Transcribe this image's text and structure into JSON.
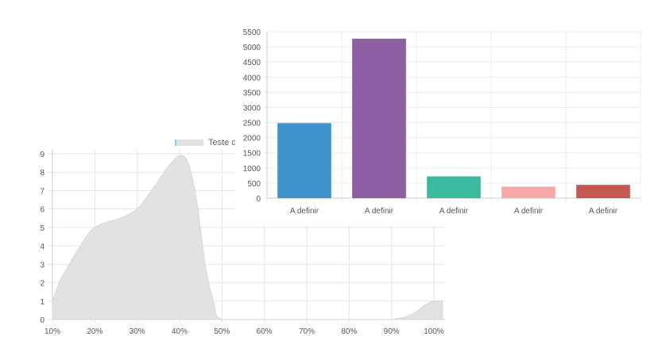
{
  "charts": {
    "area": {
      "legend_label": "Teste d"
    }
  },
  "chart_data": [
    {
      "type": "area",
      "title": "",
      "xlabel": "",
      "ylabel": "",
      "x_ticks": [
        "10%",
        "20%",
        "30%",
        "40%",
        "50%",
        "60%",
        "70%",
        "80%",
        "90%",
        "100%"
      ],
      "y_ticks": [
        0,
        1,
        2,
        3,
        4,
        5,
        6,
        7,
        8,
        9
      ],
      "ylim": [
        0,
        9
      ],
      "xlim": [
        10,
        100
      ],
      "grid": true,
      "legend": "top-center",
      "series": [
        {
          "name": "Teste d",
          "color": "#e2e2e2",
          "points": [
            [
              10,
              1
            ],
            [
              12,
              2.2
            ],
            [
              15,
              3.4
            ],
            [
              18,
              4.5
            ],
            [
              20,
              5
            ],
            [
              23,
              5.3
            ],
            [
              26,
              5.5
            ],
            [
              30,
              6
            ],
            [
              34,
              7.2
            ],
            [
              37,
              8.2
            ],
            [
              40,
              8.9
            ],
            [
              42,
              8.5
            ],
            [
              44,
              6.5
            ],
            [
              46,
              3
            ],
            [
              48,
              1
            ],
            [
              50,
              0
            ],
            [
              60,
              0
            ],
            [
              70,
              0
            ],
            [
              80,
              0
            ],
            [
              90,
              0
            ],
            [
              95,
              0.3
            ],
            [
              98,
              0.8
            ],
            [
              100,
              1
            ],
            [
              102,
              1
            ]
          ]
        }
      ]
    },
    {
      "type": "bar",
      "title": "",
      "xlabel": "",
      "ylabel": "",
      "categories": [
        "A definir",
        "A definir",
        "A definir",
        "A definir",
        "A definir"
      ],
      "values": [
        2480,
        5270,
        720,
        380,
        440
      ],
      "colors": [
        "#3e95cd",
        "#8e5ea2",
        "#3cba9f",
        "#f4a9a8",
        "#c45850"
      ],
      "y_ticks": [
        0,
        500,
        1000,
        1500,
        2000,
        2500,
        3000,
        3500,
        4000,
        4500,
        5000,
        5500
      ],
      "ylim": [
        0,
        5500
      ],
      "grid": true
    }
  ]
}
